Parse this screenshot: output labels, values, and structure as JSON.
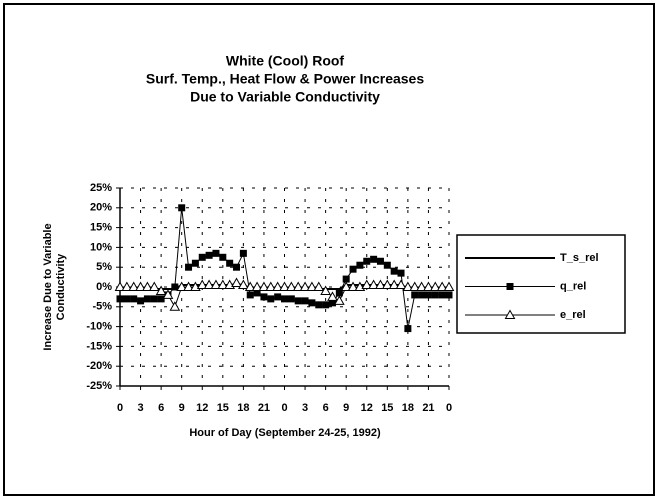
{
  "chart_data": {
    "type": "line",
    "title": "White (Cool) Roof",
    "subtitle": [
      "Surf. Temp., Heat Flow & Power Increases",
      "Due to Variable Conductivity"
    ],
    "ylabel": [
      "Increase Due to Variable",
      "Conductivity"
    ],
    "xlabel": "Hour of Day (September 24-25, 1992)",
    "x": [
      0,
      1,
      2,
      3,
      4,
      5,
      6,
      7,
      8,
      9,
      10,
      11,
      12,
      13,
      14,
      15,
      16,
      17,
      18,
      19,
      20,
      21,
      22,
      23,
      24,
      25,
      26,
      27,
      28,
      29,
      30,
      31,
      32,
      33,
      34,
      35,
      36,
      37,
      38,
      39,
      40,
      41,
      42,
      43,
      44,
      45,
      46,
      47,
      48
    ],
    "xlim": [
      0,
      48
    ],
    "xticks": [
      0,
      3,
      6,
      9,
      12,
      15,
      18,
      21,
      {
        "value": 24,
        "label": "0"
      },
      {
        "value": 27,
        "label": "3"
      },
      {
        "value": 30,
        "label": "6"
      },
      {
        "value": 33,
        "label": "9"
      },
      {
        "value": 36,
        "label": "12"
      },
      {
        "value": 39,
        "label": "15"
      },
      {
        "value": 42,
        "label": "18"
      },
      {
        "value": 45,
        "label": "21"
      },
      {
        "value": 48,
        "label": "0"
      }
    ],
    "ylim": [
      -25,
      25
    ],
    "yticks": [
      {
        "value": -25,
        "label": "-25%"
      },
      {
        "value": -20,
        "label": "-20%"
      },
      {
        "value": -15,
        "label": "-15%"
      },
      {
        "value": -10,
        "label": "-10%"
      },
      {
        "value": -5,
        "label": "-5%"
      },
      {
        "value": 0,
        "label": "0%"
      },
      {
        "value": 5,
        "label": "5%"
      },
      {
        "value": 10,
        "label": "10%"
      },
      {
        "value": 15,
        "label": "15%"
      },
      {
        "value": 20,
        "label": "20%"
      },
      {
        "value": 25,
        "label": "25%"
      }
    ],
    "grid": true,
    "legend": "right",
    "series": [
      {
        "name": "T_s_rel",
        "color": "#000000",
        "marker": "none",
        "values": [
          -0.5,
          -0.5,
          -0.5,
          -0.5,
          -0.5,
          -0.5,
          -0.5,
          -0.5,
          -0.5,
          0.5,
          0.5,
          0.5,
          0.5,
          0.5,
          0.5,
          0.5,
          0.5,
          0.5,
          0.5,
          -0.5,
          -0.5,
          -0.5,
          -0.5,
          -0.5,
          -0.5,
          -0.5,
          -0.5,
          -0.5,
          -0.5,
          -0.5,
          -0.5,
          -0.5,
          -0.5,
          0.5,
          0.5,
          0.5,
          0.5,
          0.5,
          0.5,
          0.5,
          0.5,
          0.5,
          -0.5,
          -0.5,
          -0.5,
          -0.5,
          -0.5,
          -0.5,
          -0.5
        ]
      },
      {
        "name": "q_rel",
        "color": "#000000",
        "marker": "square",
        "values": [
          -3,
          -3,
          -3,
          -3.5,
          -3,
          -3,
          -3,
          -2,
          0,
          20,
          5,
          6,
          7.5,
          8,
          8.5,
          7.5,
          6,
          5,
          8.5,
          -2,
          -1.5,
          -2.5,
          -3,
          -2.5,
          -3,
          -3,
          -3.5,
          -3.5,
          -4,
          -4.5,
          -4.5,
          -4,
          -1.5,
          2,
          4.5,
          5.5,
          6.5,
          7,
          6.5,
          5.5,
          4,
          3.5,
          -10.5,
          -2,
          -2,
          -2,
          -2,
          -2,
          -2
        ]
      },
      {
        "name": "e_rel",
        "color": "#000000",
        "marker": "triangle",
        "values": [
          0,
          0,
          0,
          0,
          0,
          0,
          -1,
          -2,
          -5,
          0,
          0,
          0,
          0.5,
          0.5,
          0.5,
          0.5,
          0.5,
          1,
          0.5,
          0,
          0,
          0,
          0,
          0,
          0,
          0,
          0,
          0,
          0,
          0,
          -1,
          -2.5,
          -3.5,
          0,
          0,
          0,
          0.5,
          0.5,
          0.5,
          0.5,
          0.5,
          0.5,
          0,
          0,
          0,
          0,
          0,
          0,
          0
        ]
      }
    ]
  }
}
